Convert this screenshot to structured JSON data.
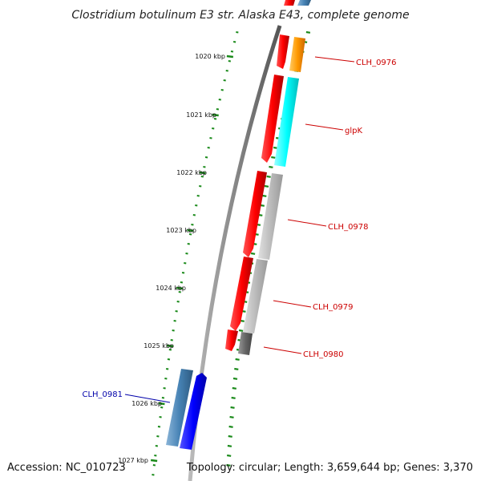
{
  "title": "Clostridium botulinum E3 str. Alaska E43, complete genome",
  "footer": {
    "accession": "Accession: NC_010723",
    "stats": "Topology: circular; Length: 3,659,644 bp; Genes: 3,370"
  },
  "scale": {
    "ticks": [
      {
        "label": "1020 kbp"
      },
      {
        "label": "1021 kbp"
      },
      {
        "label": "1022 kbp"
      },
      {
        "label": "1023 kbp"
      },
      {
        "label": "1024 kbp"
      },
      {
        "label": "1025 kbp"
      },
      {
        "label": "1026 kbp"
      },
      {
        "label": "1027 kbp"
      }
    ]
  },
  "genes": [
    {
      "name": "CLH_0976",
      "strand": "forward",
      "label_color": "#cc0000"
    },
    {
      "name": "glpK",
      "strand": "forward",
      "label_color": "#cc0000"
    },
    {
      "name": "CLH_0978",
      "strand": "forward",
      "label_color": "#cc0000"
    },
    {
      "name": "CLH_0979",
      "strand": "forward",
      "label_color": "#cc0000"
    },
    {
      "name": "CLH_0980",
      "strand": "forward",
      "label_color": "#cc0000"
    },
    {
      "name": "CLH_0981",
      "strand": "reverse",
      "label_color": "#0000aa"
    }
  ],
  "colors": {
    "cds_forward": "#ff0000",
    "cds_reverse": "#0000ff",
    "backbone": "#888888",
    "tick": "#1a8a1a",
    "cog_orange": "#ff9900",
    "cog_cyan": "#00ffff",
    "cog_gray": "#bbbbbb",
    "cog_darkgray": "#666666",
    "cog_steelblue": "#4682b4"
  }
}
